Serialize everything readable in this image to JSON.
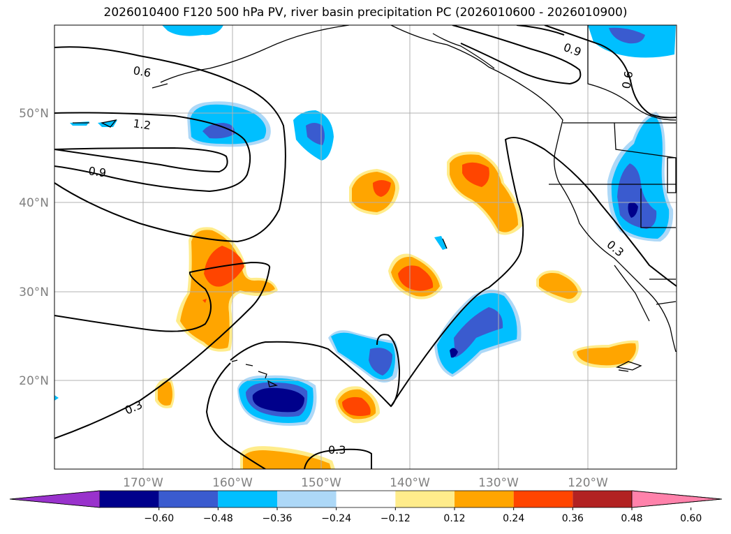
{
  "title": "2026010400 F120 500 hPa PV, river basin precipitation PC (2026010600 - 2026010900)",
  "longitude_labels": [
    "170°W",
    "160°W",
    "150°W",
    "140°W",
    "130°W",
    "120°W"
  ],
  "latitude_labels": [
    "50°N",
    "40°N",
    "30°N",
    "20°N"
  ],
  "colorbar": {
    "ticks": [
      "−0.60",
      "−0.48",
      "−0.36",
      "−0.24",
      "−0.12",
      "0.12",
      "0.24",
      "0.36",
      "0.48",
      "0.60"
    ],
    "colors": [
      "#9932cc",
      "#00008b",
      "#3a5bcf",
      "#00bfff",
      "#add8f7",
      "#ffffff",
      "#ffec8b",
      "#ffa500",
      "#ff4500",
      "#b22222",
      "#ff82ab"
    ]
  },
  "contour_labels": [
    "0.6",
    "1.2",
    "0.9",
    "0.9",
    "0.6",
    "0.3",
    "0.3",
    "0.3"
  ],
  "colors": {
    "land_outline": "#000000",
    "gridline": "#b0b0b0",
    "contour": "#000000"
  }
}
